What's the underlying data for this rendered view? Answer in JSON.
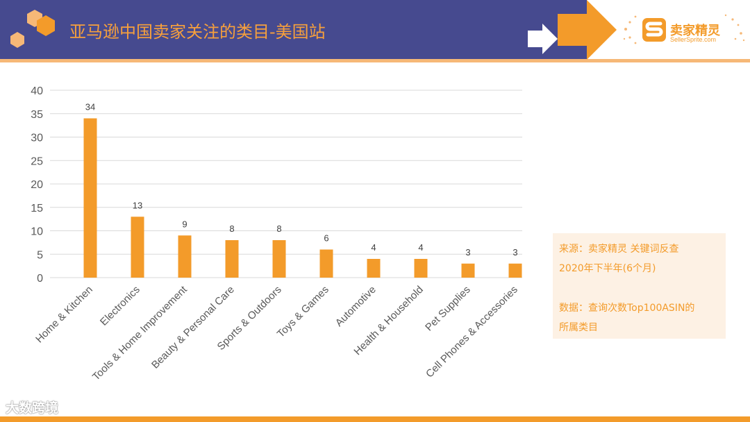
{
  "header": {
    "title": "亚马逊中国卖家关注的类目-美国站",
    "bar_color": "#464a8f",
    "accent_color": "#f39b2a"
  },
  "logo": {
    "name": "卖家精灵",
    "site": "SellerSprite.com"
  },
  "note": {
    "line1": "来源：卖家精灵 关键词反查",
    "line2": "2020年下半年(6个月)",
    "line3": "数据：查询次数Top100ASIN的",
    "line4": "所属类目"
  },
  "watermark": "大数跨境",
  "chart_data": {
    "type": "bar",
    "categories": [
      "Home & Kitchen",
      "Electronics",
      "Tools & Home Improvement",
      "Beauty & Personal Care",
      "Sports & Outdoors",
      "Toys & Games",
      "Automotive",
      "Health & Household",
      "Pet Supplies",
      "Cell Phones & Accessories"
    ],
    "values": [
      34,
      13,
      9,
      8,
      8,
      6,
      4,
      4,
      3,
      3
    ],
    "ylim": [
      0,
      40
    ],
    "yticks": [
      0,
      5,
      10,
      15,
      20,
      25,
      30,
      35,
      40
    ],
    "grid": true,
    "data_labels": true,
    "bar_color": "#f39b2a",
    "title": "",
    "xlabel": "",
    "ylabel": ""
  }
}
